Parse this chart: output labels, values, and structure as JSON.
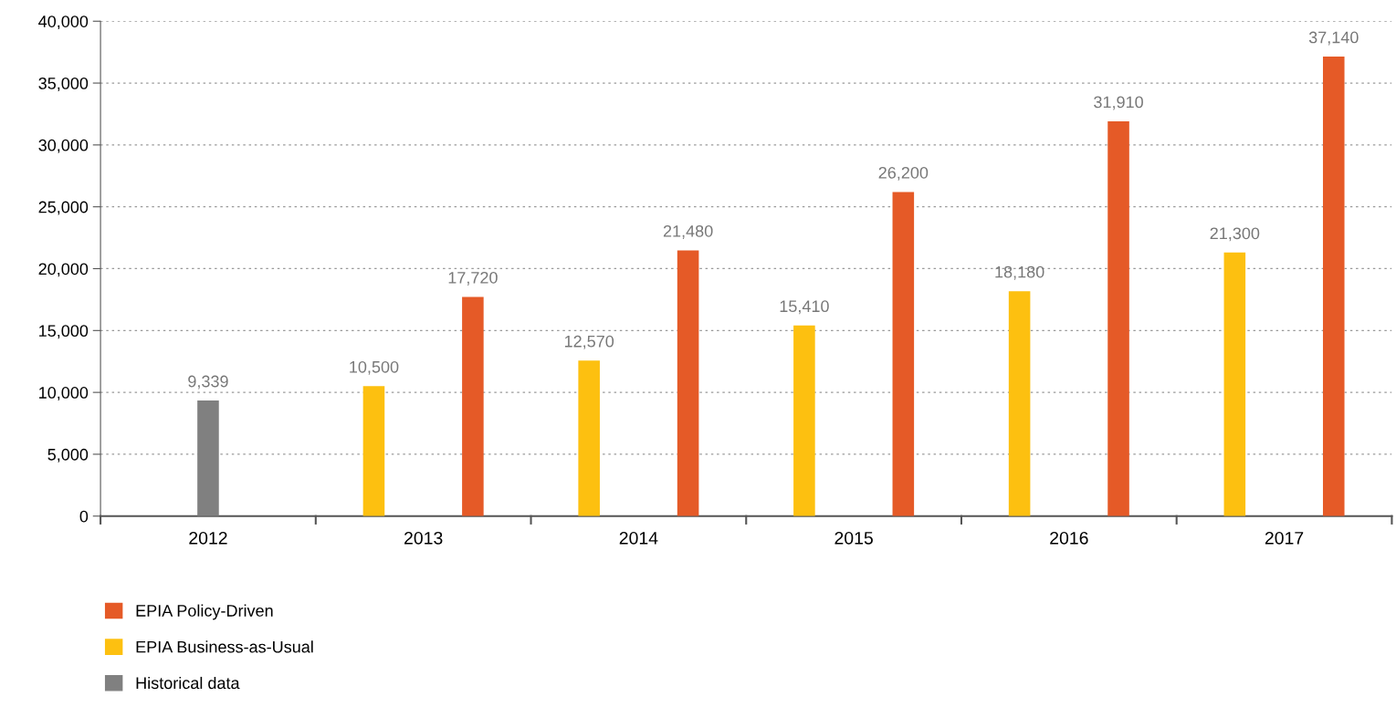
{
  "chart_data": {
    "type": "bar",
    "categories": [
      "2012",
      "2013",
      "2014",
      "2015",
      "2016",
      "2017"
    ],
    "series": [
      {
        "name": "EPIA Policy-Driven",
        "color": "#e55a27",
        "values": [
          null,
          17720,
          21480,
          26200,
          31910,
          37140
        ],
        "value_labels": [
          null,
          "17,720",
          "21,480",
          "26,200",
          "31,910",
          "37,140"
        ]
      },
      {
        "name": "EPIA Business-as-Usual",
        "color": "#fdc010",
        "values": [
          null,
          10500,
          12570,
          15410,
          18180,
          21300
        ],
        "value_labels": [
          null,
          "10,500",
          "12,570",
          "15,410",
          "18,180",
          "21,300"
        ]
      },
      {
        "name": "Historical data",
        "color": "#808080",
        "values": [
          9339,
          null,
          null,
          null,
          null,
          null
        ],
        "value_labels": [
          "9,339",
          null,
          null,
          null,
          null,
          null
        ]
      }
    ],
    "ylim": [
      0,
      40000
    ],
    "yticks": [
      {
        "value": 0,
        "label": "0"
      },
      {
        "value": 5000,
        "label": "5,000"
      },
      {
        "value": 10000,
        "label": "10,000"
      },
      {
        "value": 15000,
        "label": "15,000"
      },
      {
        "value": 20000,
        "label": "20,000"
      },
      {
        "value": 25000,
        "label": "25,000"
      },
      {
        "value": 30000,
        "label": "30,000"
      },
      {
        "value": 35000,
        "label": "35,000"
      },
      {
        "value": 40000,
        "label": "40,000"
      }
    ],
    "grid": "y",
    "legend": "bottom left"
  }
}
